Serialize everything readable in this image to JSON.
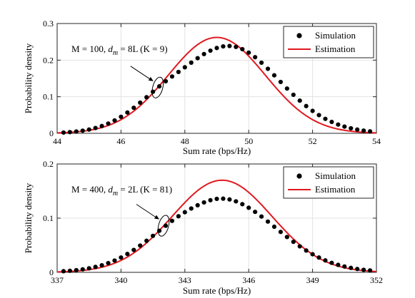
{
  "chart_data": [
    {
      "type": "scatter",
      "xlabel": "Sum rate (bps/Hz)",
      "ylabel": "Probability density",
      "xlim": [
        44,
        54
      ],
      "ylim": [
        0,
        0.3
      ],
      "xticks": [
        "44",
        "46",
        "48",
        "50",
        "52",
        "54"
      ],
      "yticks": [
        "0",
        "0.1",
        "0.2",
        "0.3"
      ],
      "grid": true,
      "legend_position": "top-right",
      "annotation": {
        "M_part": "M = 100, ",
        "d_part": "d",
        "d_sub": "m",
        "rest": " = 8L (K = 9)",
        "target_x": 47.15,
        "target_y": 0.125
      },
      "series": [
        {
          "name": "Simulation",
          "marker": "dot",
          "color": "#000000",
          "x": [
            44.2,
            44.4,
            44.6,
            44.8,
            45.0,
            45.2,
            45.4,
            45.6,
            45.8,
            46.0,
            46.2,
            46.4,
            46.6,
            46.8,
            47.0,
            47.2,
            47.4,
            47.6,
            47.8,
            48.0,
            48.2,
            48.4,
            48.6,
            48.8,
            49.0,
            49.2,
            49.4,
            49.6,
            49.8,
            50.0,
            50.2,
            50.4,
            50.6,
            50.8,
            51.0,
            51.2,
            51.4,
            51.6,
            51.8,
            52.0,
            52.2,
            52.4,
            52.6,
            52.8,
            53.0,
            53.2,
            53.4,
            53.6,
            53.8
          ],
          "y": [
            0.0021,
            0.0032,
            0.0049,
            0.0072,
            0.0103,
            0.0145,
            0.0199,
            0.0267,
            0.0351,
            0.0452,
            0.0568,
            0.0698,
            0.0838,
            0.0986,
            0.1136,
            0.1283,
            0.1422,
            0.1552,
            0.1677,
            0.1804,
            0.1931,
            0.2053,
            0.2165,
            0.2259,
            0.2331,
            0.2375,
            0.2386,
            0.2361,
            0.23,
            0.2205,
            0.208,
            0.193,
            0.1763,
            0.1585,
            0.1403,
            0.1224,
            0.1053,
            0.0893,
            0.0745,
            0.0613,
            0.0497,
            0.0396,
            0.0311,
            0.024,
            0.0183,
            0.0138,
            0.0102,
            0.0074,
            0.0053
          ]
        },
        {
          "name": "Estimation",
          "marker": "line",
          "color": "#e0191f",
          "mean": 49.0,
          "std": 1.52,
          "peak": 0.262,
          "x_range": [
            44.0,
            54.0
          ]
        }
      ]
    },
    {
      "type": "scatter",
      "xlabel": "Sum rate (bps/Hz)",
      "ylabel": "Probability density",
      "xlim": [
        337,
        352
      ],
      "ylim": [
        0,
        0.2
      ],
      "xticks": [
        "337",
        "340",
        "343",
        "346",
        "349",
        "352"
      ],
      "yticks": [
        "0",
        "0.1",
        "0.2"
      ],
      "grid": true,
      "legend_position": "top-right",
      "annotation": {
        "M_part": "M = 400, ",
        "d_part": "d",
        "d_sub": "m",
        "rest": " = 2L (K = 81)",
        "target_x": 342.0,
        "target_y": 0.086
      },
      "series": [
        {
          "name": "Simulation",
          "marker": "dot",
          "color": "#000000",
          "x": [
            337.3,
            337.6,
            337.9,
            338.2,
            338.5,
            338.8,
            339.1,
            339.4,
            339.7,
            340.0,
            340.3,
            340.6,
            340.9,
            341.2,
            341.5,
            341.8,
            342.1,
            342.4,
            342.7,
            343.0,
            343.3,
            343.6,
            343.9,
            344.2,
            344.5,
            344.8,
            345.1,
            345.4,
            345.7,
            346.0,
            346.3,
            346.6,
            346.9,
            347.2,
            347.5,
            347.8,
            348.1,
            348.4,
            348.7,
            349.0,
            349.3,
            349.6,
            349.9,
            350.2,
            350.5,
            350.8,
            351.1,
            351.4,
            351.7
          ],
          "y": [
            0.0021,
            0.0029,
            0.004,
            0.0055,
            0.0075,
            0.01,
            0.0131,
            0.017,
            0.0218,
            0.0274,
            0.0339,
            0.0413,
            0.0494,
            0.0582,
            0.0673,
            0.0767,
            0.086,
            0.095,
            0.1035,
            0.111,
            0.1178,
            0.1238,
            0.129,
            0.1331,
            0.1356,
            0.136,
            0.1345,
            0.131,
            0.1258,
            0.1192,
            0.1116,
            0.103,
            0.0937,
            0.0842,
            0.0746,
            0.0652,
            0.0563,
            0.048,
            0.0403,
            0.0334,
            0.0273,
            0.022,
            0.0175,
            0.0138,
            0.0107,
            0.0082,
            0.0062,
            0.0047,
            0.0035
          ]
        },
        {
          "name": "Estimation",
          "marker": "line",
          "color": "#e0191f",
          "mean": 344.75,
          "std": 2.35,
          "peak": 0.17,
          "x_range": [
            337.0,
            352.0
          ]
        }
      ]
    }
  ]
}
